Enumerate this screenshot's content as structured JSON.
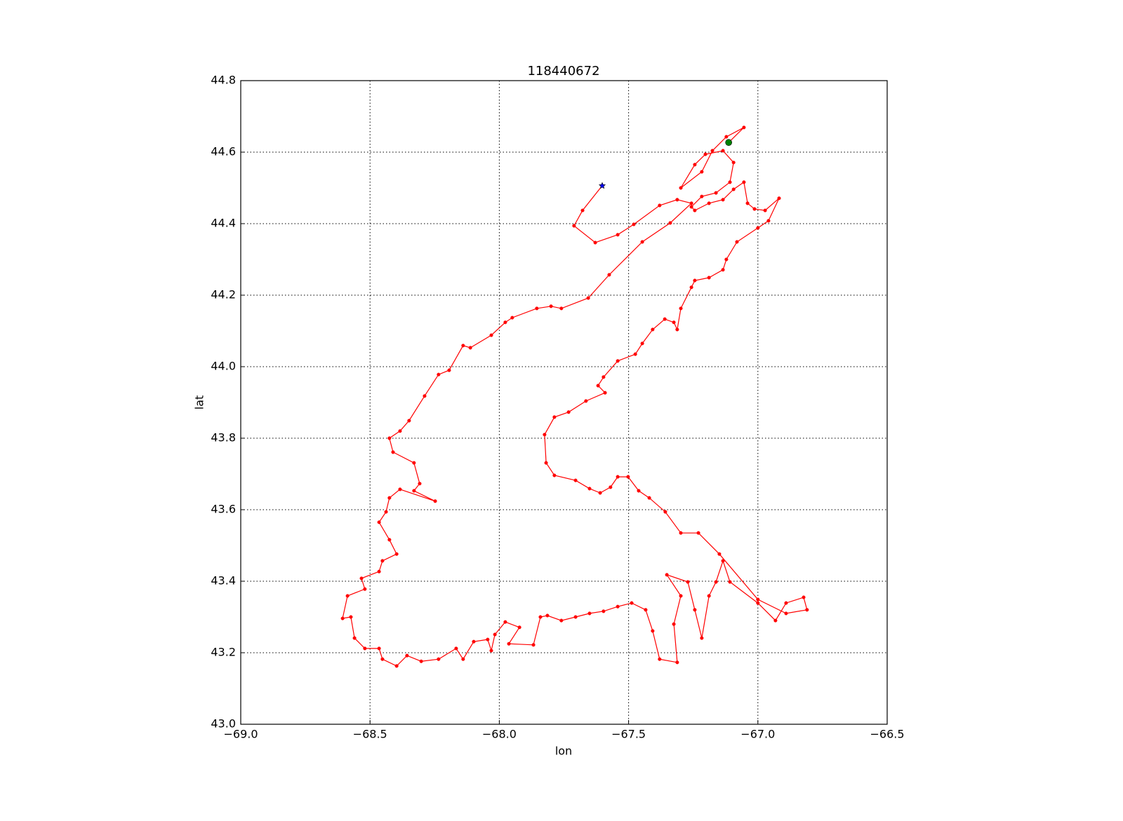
{
  "chart_data": {
    "type": "line",
    "title": "118440672",
    "x_label": "lon",
    "y_label": "lat",
    "xlim": [
      -69,
      -66.5
    ],
    "ylim": [
      43,
      44.8
    ],
    "xticks": [
      {
        "value": -69,
        "label": "−69.0"
      },
      {
        "value": -68.5,
        "label": "−68.5"
      },
      {
        "value": -68,
        "label": "−68.0"
      },
      {
        "value": -67.5,
        "label": "−67.5"
      },
      {
        "value": -67,
        "label": "−67.0"
      },
      {
        "value": -66.5,
        "label": "−66.5"
      }
    ],
    "yticks": [
      {
        "value": 43,
        "label": "43.0"
      },
      43.2,
      43.4,
      43.6,
      43.8,
      {
        "value": 44,
        "label": "44.0"
      },
      44.2,
      44.4,
      44.6,
      44.8
    ],
    "grid": true,
    "series": [
      {
        "color": "#ff0000",
        "marker": "o",
        "x": [
          -67.113,
          -67.054,
          -67.122,
          -67.176,
          -67.217,
          -67.298,
          -67.244,
          -67.203,
          -67.135,
          -67.094,
          -67.108,
          -67.162,
          -67.217,
          -67.257,
          -67.244,
          -67.189,
          -67.135,
          -67.094,
          -67.054,
          -67.04,
          -67.013,
          -66.972,
          -66.918,
          -66.959,
          -67.0,
          -67.081,
          -67.122,
          -67.135,
          -67.189,
          -67.244,
          -67.257,
          -67.298,
          -67.312,
          -67.325,
          -67.36,
          -67.407,
          -67.447,
          -67.474,
          -67.542,
          -67.597,
          -67.618,
          -67.591,
          -67.665,
          -67.732,
          -67.787,
          -67.825,
          -67.819,
          -67.787,
          -67.705,
          -67.651,
          -67.61,
          -67.57,
          -67.542,
          -67.502,
          -67.461,
          -67.42,
          -67.358,
          -67.298,
          -67.23,
          -67.149,
          -67.0,
          -66.891,
          -66.81,
          -66.823,
          -66.891,
          -66.932,
          -67.0,
          -67.108,
          -67.135,
          -67.162,
          -67.189,
          -67.217,
          -67.244,
          -67.271,
          -67.352,
          -67.298,
          -67.325,
          -67.312,
          -67.38,
          -67.407,
          -67.434,
          -67.488,
          -67.542,
          -67.597,
          -67.651,
          -67.705,
          -67.76,
          -67.814,
          -67.841,
          -67.868,
          -67.963,
          -67.922,
          -67.977,
          -68.017,
          -68.031,
          -68.045,
          -68.099,
          -68.14,
          -68.167,
          -68.235,
          -68.302,
          -68.357,
          -68.397,
          -68.452,
          -68.465,
          -68.52,
          -68.56,
          -68.574,
          -68.606,
          -68.587,
          -68.52,
          -68.533,
          -68.465,
          -68.452,
          -68.397,
          -68.425,
          -68.465,
          -68.438,
          -68.425,
          -68.384,
          -68.248,
          -68.33,
          -68.308,
          -68.33,
          -68.411,
          -68.425,
          -68.384,
          -68.349,
          -68.289,
          -68.235,
          -68.194,
          -68.14,
          -68.112,
          -68.031,
          -67.977,
          -67.95,
          -67.855,
          -67.8,
          -67.76,
          -67.656,
          -67.575,
          -67.447,
          -67.339,
          -67.257,
          -67.312,
          -67.38,
          -67.48,
          -67.542,
          -67.629,
          -67.711,
          -67.678,
          -67.602
        ],
        "y": [
          44.627,
          44.669,
          44.643,
          44.604,
          44.545,
          44.5,
          44.565,
          44.594,
          44.604,
          44.571,
          44.516,
          44.486,
          44.476,
          44.447,
          44.437,
          44.457,
          44.467,
          44.496,
          44.516,
          44.457,
          44.441,
          44.437,
          44.471,
          44.408,
          44.388,
          44.349,
          44.3,
          44.271,
          44.249,
          44.241,
          44.222,
          44.163,
          44.104,
          44.124,
          44.133,
          44.104,
          44.065,
          44.035,
          44.016,
          43.971,
          43.947,
          43.927,
          43.904,
          43.873,
          43.859,
          43.81,
          43.731,
          43.696,
          43.682,
          43.659,
          43.647,
          43.663,
          43.692,
          43.692,
          43.653,
          43.633,
          43.594,
          43.535,
          43.535,
          43.476,
          43.349,
          43.31,
          43.32,
          43.355,
          43.339,
          43.29,
          43.339,
          43.398,
          43.457,
          43.398,
          43.359,
          43.241,
          43.32,
          43.398,
          43.418,
          43.359,
          43.28,
          43.173,
          43.182,
          43.261,
          43.32,
          43.339,
          43.329,
          43.316,
          43.31,
          43.3,
          43.29,
          43.304,
          43.3,
          43.222,
          43.225,
          43.271,
          43.286,
          43.251,
          43.206,
          43.237,
          43.231,
          43.182,
          43.212,
          43.182,
          43.176,
          43.192,
          43.163,
          43.182,
          43.212,
          43.212,
          43.241,
          43.3,
          43.296,
          43.359,
          43.378,
          43.408,
          43.427,
          43.457,
          43.476,
          43.516,
          43.565,
          43.594,
          43.633,
          43.657,
          43.624,
          43.653,
          43.673,
          43.731,
          43.761,
          43.8,
          43.82,
          43.849,
          43.918,
          43.978,
          43.99,
          44.059,
          44.053,
          44.088,
          44.124,
          44.137,
          44.163,
          44.169,
          44.163,
          44.192,
          44.257,
          44.349,
          44.402,
          44.457,
          44.467,
          44.451,
          44.398,
          44.369,
          44.347,
          44.394,
          44.437,
          44.506
        ]
      },
      {
        "color": "#008000",
        "marker": "o",
        "x": [
          -67.113
        ],
        "y": [
          44.627
        ]
      },
      {
        "color": "#0000ff",
        "marker": "*",
        "x": [
          -67.602
        ],
        "y": [
          44.506
        ]
      }
    ]
  }
}
